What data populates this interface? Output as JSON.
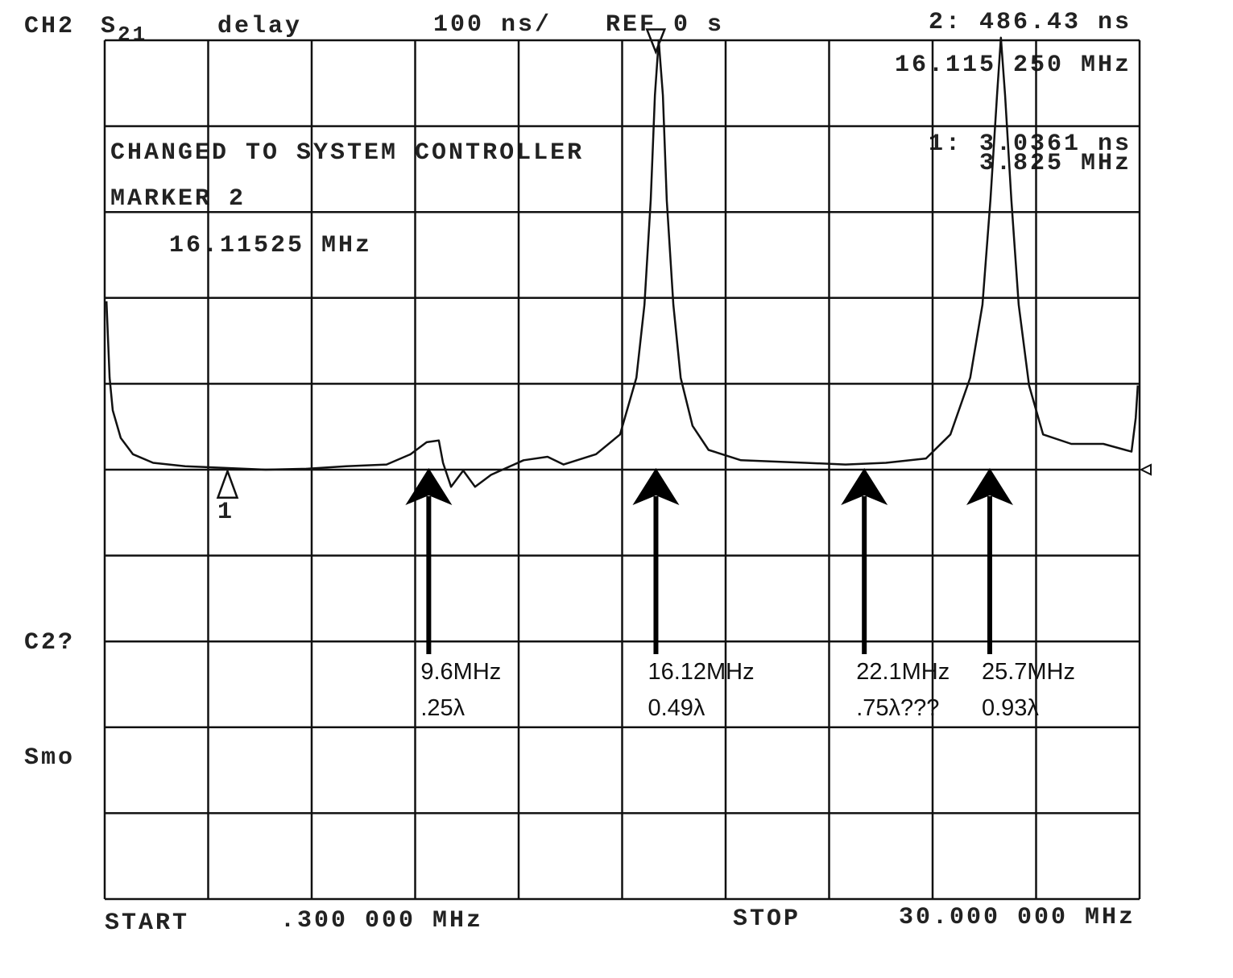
{
  "chart_data": {
    "type": "line",
    "channel": "CH2",
    "parameter": {
      "base": "S",
      "sub": "21"
    },
    "format": "delay",
    "scale_label": "100 ns/",
    "ref_label": "REF 0 s",
    "ref": 0,
    "readouts": [
      "2: 486.43 ns",
      "16.115 250 MHz",
      "1: 3.0361 ns",
      "3.825 MHz"
    ],
    "messages": [
      "CHANGED TO SYSTEM CONTROLLER",
      "MARKER 2",
      "16.11525 MHz"
    ],
    "side_labels": [
      "C2?",
      "Smo"
    ],
    "start_label": "START",
    "start_value": ".300 000 MHz",
    "stop_label": "STOP",
    "stop_value": "30.000 000 MHz",
    "xlim": [
      0.3,
      30
    ],
    "ylim": [
      -500,
      500
    ],
    "grid": true,
    "series": [
      {
        "name": "S21 delay",
        "color": "#111111",
        "x": [
          0.35,
          0.44,
          0.53,
          0.76,
          1.11,
          1.69,
          2.61,
          3.77,
          4.92,
          6.08,
          7.23,
          8.39,
          9.08,
          9.54,
          9.89,
          10.01,
          10.24,
          10.59,
          10.93,
          11.39,
          12.32,
          13.01,
          13.47,
          14.4,
          15.09,
          15.56,
          15.79,
          15.97,
          16.09,
          16.2,
          16.32,
          16.43,
          16.62,
          16.83,
          17.17,
          17.63,
          18.56,
          20.41,
          21.56,
          22.72,
          23.87,
          24.57,
          25.14,
          25.49,
          25.72,
          25.91,
          26.02,
          26.14,
          26.32,
          26.53,
          26.83,
          27.23,
          28.04,
          28.96,
          29.77,
          29.89,
          29.95
        ],
        "values": [
          196,
          107,
          69,
          37,
          18,
          8,
          4,
          2,
          0,
          1,
          4,
          6,
          18,
          32,
          34,
          8,
          -20,
          -1,
          -20,
          -6,
          11,
          15,
          6,
          18,
          41,
          107,
          192,
          314,
          436,
          500,
          436,
          314,
          192,
          107,
          51,
          23,
          11,
          8,
          6,
          8,
          13,
          41,
          107,
          192,
          314,
          436,
          503,
          436,
          314,
          192,
          98,
          41,
          30,
          30,
          21,
          60,
          98
        ]
      }
    ],
    "markers": [
      {
        "label": "1",
        "x": 3.825,
        "value": 3.0361
      },
      {
        "label": "2",
        "x": 16.11525,
        "value": 486.43
      }
    ],
    "annotations": [
      {
        "x": 9.6,
        "lines": [
          "9.6MHz",
          ".25λ"
        ]
      },
      {
        "x": 16.12,
        "lines": [
          "16.12MHz",
          "0.49λ"
        ]
      },
      {
        "x": 22.1,
        "lines": [
          "22.1MHz",
          ".75λ???"
        ]
      },
      {
        "x": 25.7,
        "lines": [
          "25.7MHz",
          "0.93λ"
        ]
      }
    ]
  }
}
